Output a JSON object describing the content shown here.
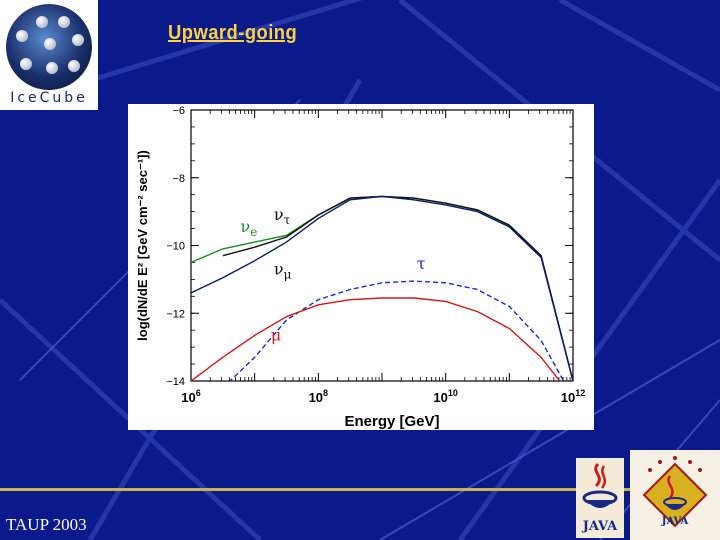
{
  "slide": {
    "title": "Upward-going",
    "footer": "TAUP 2003",
    "logo_text": "IceCube",
    "java_text": "JAVA",
    "colors": {
      "background": "#0a1a8a",
      "title": "#ffd23a"
    }
  },
  "icons": [
    "icecube-logo-icon",
    "java-logo-icon",
    "java-award-badge-icon"
  ],
  "chart_data": {
    "type": "line",
    "title": "",
    "xlabel": "Energy [GeV]",
    "ylabel": "log(dN/dE E² [GeV cm⁻² sec⁻¹])",
    "x_scale": "log",
    "xlim": [
      1000000,
      1000000000000
    ],
    "ylim": [
      -14,
      -6
    ],
    "x_ticks": [
      {
        "value": 1000000,
        "base": "10",
        "exp": "6"
      },
      {
        "value": 100000000,
        "base": "10",
        "exp": "8"
      },
      {
        "value": 10000000000,
        "base": "10",
        "exp": "10"
      },
      {
        "value": 1000000000000,
        "base": "10",
        "exp": "12"
      }
    ],
    "y_ticks": [
      {
        "value": -6,
        "label": "−6"
      },
      {
        "value": -8,
        "label": "−8"
      },
      {
        "value": -10,
        "label": "−10"
      },
      {
        "value": -12,
        "label": "−12"
      },
      {
        "value": -14,
        "label": "−14"
      }
    ],
    "grid": false,
    "series": [
      {
        "name": "ν_e",
        "color": "#1a8a2a",
        "dash": "solid",
        "points": [
          [
            1000000,
            -10.5
          ],
          [
            3160000,
            -10.1
          ],
          [
            10000000,
            -9.9
          ],
          [
            31600000,
            -9.7
          ],
          [
            100000000,
            -9.1
          ],
          [
            316000000,
            -8.6
          ],
          [
            1000000000,
            -8.55
          ],
          [
            3160000000,
            -8.6
          ],
          [
            10000000000,
            -8.75
          ],
          [
            31600000000,
            -8.95
          ],
          [
            100000000000,
            -9.4
          ],
          [
            316000000000,
            -10.3
          ],
          [
            1000000000000,
            -14
          ]
        ]
      },
      {
        "name": "ν_τ",
        "color": "#111111",
        "dash": "solid",
        "points": [
          [
            3160000,
            -10.3
          ],
          [
            10000000,
            -10.05
          ],
          [
            31600000,
            -9.75
          ],
          [
            100000000,
            -9.1
          ],
          [
            316000000,
            -8.6
          ],
          [
            1000000000,
            -8.55
          ],
          [
            3160000000,
            -8.6
          ],
          [
            10000000000,
            -8.75
          ],
          [
            31600000000,
            -8.95
          ],
          [
            100000000000,
            -9.4
          ],
          [
            316000000000,
            -10.3
          ],
          [
            1000000000000,
            -14
          ]
        ]
      },
      {
        "name": "ν_μ",
        "color": "#0a1a6a",
        "dash": "solid",
        "points": [
          [
            1000000,
            -11.4
          ],
          [
            3160000,
            -10.95
          ],
          [
            10000000,
            -10.45
          ],
          [
            31600000,
            -9.9
          ],
          [
            100000000,
            -9.2
          ],
          [
            316000000,
            -8.65
          ],
          [
            1000000000,
            -8.55
          ],
          [
            3160000000,
            -8.65
          ],
          [
            10000000000,
            -8.8
          ],
          [
            31600000000,
            -9.0
          ],
          [
            100000000000,
            -9.45
          ],
          [
            316000000000,
            -10.35
          ],
          [
            1000000000000,
            -14
          ]
        ]
      },
      {
        "name": "τ",
        "color": "#1a2ad0",
        "dash": "dashed",
        "points": [
          [
            3160000,
            -14.2
          ],
          [
            10000000,
            -13.3
          ],
          [
            31600000,
            -12.2
          ],
          [
            100000000,
            -11.6
          ],
          [
            316000000,
            -11.3
          ],
          [
            1000000000,
            -11.1
          ],
          [
            3160000000,
            -11.05
          ],
          [
            10000000000,
            -11.1
          ],
          [
            31600000000,
            -11.3
          ],
          [
            100000000000,
            -11.8
          ],
          [
            316000000000,
            -12.8
          ],
          [
            1000000000000,
            -14.5
          ]
        ]
      },
      {
        "name": "μ",
        "color": "#d01818",
        "dash": "solid",
        "points": [
          [
            1000000,
            -14.0
          ],
          [
            3160000,
            -13.3
          ],
          [
            10000000,
            -12.65
          ],
          [
            31600000,
            -12.1
          ],
          [
            100000000,
            -11.75
          ],
          [
            316000000,
            -11.6
          ],
          [
            1000000000,
            -11.55
          ],
          [
            3160000000,
            -11.55
          ],
          [
            10000000000,
            -11.65
          ],
          [
            31600000000,
            -11.95
          ],
          [
            100000000000,
            -12.45
          ],
          [
            316000000000,
            -13.3
          ],
          [
            1000000000000,
            -14.5
          ]
        ]
      }
    ],
    "annotations": [
      {
        "text": "ν",
        "sub": "e",
        "x": 6000000,
        "y": -9.6,
        "color": "#1a8a2a"
      },
      {
        "text": "ν",
        "sub": "τ",
        "x": 20000000,
        "y": -9.25,
        "color": "#111111"
      },
      {
        "text": "ν",
        "sub": "μ",
        "x": 20000000,
        "y": -10.85,
        "color": "#111111"
      },
      {
        "text": "τ",
        "sub": "",
        "x": 3500000000,
        "y": -10.7,
        "color": "#1a2ad0"
      },
      {
        "text": "μ",
        "sub": "",
        "x": 18000000,
        "y": -12.8,
        "color": "#d01818"
      }
    ]
  }
}
